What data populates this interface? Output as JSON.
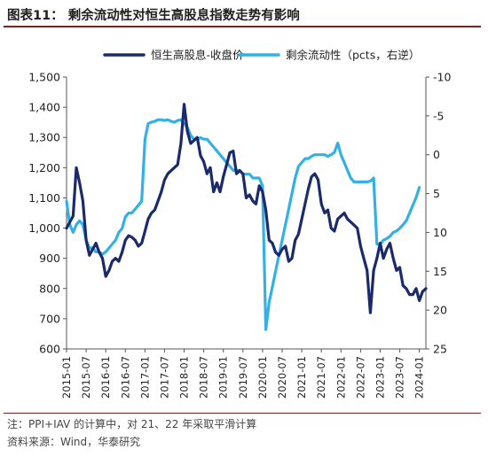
{
  "title": "图表11：  剩余流动性对恒生高股息指数走势有影响",
  "note": "注：PPI+IAV 的计算中，对 21、22 年采取平滑计算",
  "source": "资料来源：Wind，华泰研究",
  "colors": {
    "series1": "#1b2a6b",
    "series2": "#33b1e6",
    "rule": "#8a1c1c"
  },
  "chart_data": {
    "type": "line",
    "x_ticks": [
      "2015-01",
      "2015-07",
      "2016-01",
      "2016-07",
      "2017-01",
      "2017-07",
      "2018-01",
      "2018-07",
      "2019-01",
      "2019-07",
      "2020-01",
      "2020-07",
      "2021-01",
      "2021-07",
      "2022-01",
      "2022-07",
      "2023-01",
      "2023-07",
      "2024-01"
    ],
    "y_left": {
      "min": 600,
      "max": 1500,
      "ticks": [
        "600",
        "700",
        "800",
        "900",
        "1,000",
        "1,100",
        "1,200",
        "1,300",
        "1,400",
        "1,500"
      ]
    },
    "y_right": {
      "min": -10,
      "max": 25,
      "inverted": true,
      "ticks": [
        "-10",
        "-5",
        "0",
        "5",
        "10",
        "15",
        "20",
        "25"
      ]
    },
    "legend_position": "top",
    "series": [
      {
        "name": "恒生高股息-收盘价",
        "axis": "left",
        "points": [
          [
            "2015-01",
            1000
          ],
          [
            "2015-02",
            1020
          ],
          [
            "2015-03",
            1040
          ],
          [
            "2015-04",
            1200
          ],
          [
            "2015-05",
            1150
          ],
          [
            "2015-06",
            1090
          ],
          [
            "2015-07",
            960
          ],
          [
            "2015-08",
            910
          ],
          [
            "2015-09",
            930
          ],
          [
            "2015-10",
            950
          ],
          [
            "2015-11",
            920
          ],
          [
            "2015-12",
            900
          ],
          [
            "2016-01",
            840
          ],
          [
            "2016-02",
            860
          ],
          [
            "2016-03",
            890
          ],
          [
            "2016-04",
            900
          ],
          [
            "2016-05",
            890
          ],
          [
            "2016-06",
            920
          ],
          [
            "2016-07",
            960
          ],
          [
            "2016-08",
            975
          ],
          [
            "2016-09",
            970
          ],
          [
            "2016-10",
            960
          ],
          [
            "2016-11",
            940
          ],
          [
            "2016-12",
            950
          ],
          [
            "2017-01",
            990
          ],
          [
            "2017-02",
            1030
          ],
          [
            "2017-03",
            1050
          ],
          [
            "2017-04",
            1060
          ],
          [
            "2017-05",
            1090
          ],
          [
            "2017-06",
            1120
          ],
          [
            "2017-07",
            1160
          ],
          [
            "2017-08",
            1180
          ],
          [
            "2017-09",
            1190
          ],
          [
            "2017-10",
            1200
          ],
          [
            "2017-11",
            1210
          ],
          [
            "2017-12",
            1280
          ],
          [
            "2018-01",
            1410
          ],
          [
            "2018-02",
            1320
          ],
          [
            "2018-03",
            1280
          ],
          [
            "2018-04",
            1290
          ],
          [
            "2018-05",
            1300
          ],
          [
            "2018-06",
            1240
          ],
          [
            "2018-07",
            1220
          ],
          [
            "2018-08",
            1180
          ],
          [
            "2018-09",
            1200
          ],
          [
            "2018-10",
            1120
          ],
          [
            "2018-11",
            1150
          ],
          [
            "2018-12",
            1120
          ],
          [
            "2019-01",
            1170
          ],
          [
            "2019-02",
            1210
          ],
          [
            "2019-03",
            1250
          ],
          [
            "2019-04",
            1255
          ],
          [
            "2019-05",
            1180
          ],
          [
            "2019-06",
            1190
          ],
          [
            "2019-07",
            1180
          ],
          [
            "2019-08",
            1100
          ],
          [
            "2019-09",
            1110
          ],
          [
            "2019-10",
            1090
          ],
          [
            "2019-11",
            1080
          ],
          [
            "2019-12",
            1140
          ],
          [
            "2020-01",
            1120
          ],
          [
            "2020-02",
            1060
          ],
          [
            "2020-03",
            960
          ],
          [
            "2020-04",
            950
          ],
          [
            "2020-05",
            920
          ],
          [
            "2020-06",
            910
          ],
          [
            "2020-07",
            930
          ],
          [
            "2020-08",
            940
          ],
          [
            "2020-09",
            890
          ],
          [
            "2020-10",
            900
          ],
          [
            "2020-11",
            960
          ],
          [
            "2020-12",
            980
          ],
          [
            "2021-01",
            1030
          ],
          [
            "2021-02",
            1080
          ],
          [
            "2021-03",
            1130
          ],
          [
            "2021-04",
            1170
          ],
          [
            "2021-05",
            1180
          ],
          [
            "2021-06",
            1160
          ],
          [
            "2021-07",
            1080
          ],
          [
            "2021-08",
            1050
          ],
          [
            "2021-09",
            1060
          ],
          [
            "2021-10",
            1000
          ],
          [
            "2021-11",
            990
          ],
          [
            "2021-12",
            1030
          ],
          [
            "2022-01",
            1040
          ],
          [
            "2022-02",
            1050
          ],
          [
            "2022-03",
            1030
          ],
          [
            "2022-04",
            1020
          ],
          [
            "2022-05",
            1010
          ],
          [
            "2022-06",
            1000
          ],
          [
            "2022-07",
            940
          ],
          [
            "2022-08",
            900
          ],
          [
            "2022-09",
            860
          ],
          [
            "2022-10",
            720
          ],
          [
            "2022-11",
            860
          ],
          [
            "2022-12",
            900
          ],
          [
            "2023-01",
            950
          ],
          [
            "2023-02",
            900
          ],
          [
            "2023-03",
            930
          ],
          [
            "2023-04",
            950
          ],
          [
            "2023-05",
            900
          ],
          [
            "2023-06",
            860
          ],
          [
            "2023-07",
            870
          ],
          [
            "2023-08",
            810
          ],
          [
            "2023-09",
            800
          ],
          [
            "2023-10",
            780
          ],
          [
            "2023-11",
            780
          ],
          [
            "2023-12",
            800
          ],
          [
            "2024-01",
            760
          ],
          [
            "2024-02",
            790
          ],
          [
            "2024-03",
            800
          ]
        ]
      },
      {
        "name": "剩余流动性（pcts，右逆）",
        "axis": "right",
        "points": [
          [
            "2015-01",
            6
          ],
          [
            "2015-02",
            9
          ],
          [
            "2015-03",
            10
          ],
          [
            "2015-04",
            9
          ],
          [
            "2015-05",
            8.5
          ],
          [
            "2015-06",
            9
          ],
          [
            "2015-07",
            11
          ],
          [
            "2015-08",
            12
          ],
          [
            "2015-09",
            12
          ],
          [
            "2015-10",
            12.5
          ],
          [
            "2015-11",
            12.5
          ],
          [
            "2015-12",
            12.8
          ],
          [
            "2016-01",
            12.5
          ],
          [
            "2016-02",
            12
          ],
          [
            "2016-03",
            11.5
          ],
          [
            "2016-04",
            11
          ],
          [
            "2016-05",
            10
          ],
          [
            "2016-06",
            9.5
          ],
          [
            "2016-07",
            8
          ],
          [
            "2016-08",
            7.5
          ],
          [
            "2016-09",
            7.5
          ],
          [
            "2016-10",
            7
          ],
          [
            "2016-11",
            6.5
          ],
          [
            "2016-12",
            6
          ],
          [
            "2017-01",
            -2
          ],
          [
            "2017-02",
            -4
          ],
          [
            "2017-03",
            -4.2
          ],
          [
            "2017-04",
            -4.3
          ],
          [
            "2017-05",
            -4.5
          ],
          [
            "2017-06",
            -4.5
          ],
          [
            "2017-07",
            -4.4
          ],
          [
            "2017-08",
            -4.5
          ],
          [
            "2017-09",
            -4.3
          ],
          [
            "2017-10",
            -4.2
          ],
          [
            "2017-11",
            -4.4
          ],
          [
            "2017-12",
            -4.5
          ],
          [
            "2018-01",
            -4
          ],
          [
            "2018-02",
            -3.5
          ],
          [
            "2018-03",
            -2.5
          ],
          [
            "2018-04",
            -2
          ],
          [
            "2018-05",
            -2
          ],
          [
            "2018-06",
            -2.2
          ],
          [
            "2018-07",
            -2
          ],
          [
            "2018-08",
            -2
          ],
          [
            "2018-09",
            -1.5
          ],
          [
            "2018-10",
            -1
          ],
          [
            "2018-11",
            -0.5
          ],
          [
            "2018-12",
            0
          ],
          [
            "2019-01",
            0.5
          ],
          [
            "2019-02",
            1
          ],
          [
            "2019-03",
            1.5
          ],
          [
            "2019-04",
            2
          ],
          [
            "2019-05",
            2
          ],
          [
            "2019-06",
            2
          ],
          [
            "2019-07",
            2.5
          ],
          [
            "2019-08",
            2.5
          ],
          [
            "2019-09",
            2.5
          ],
          [
            "2019-10",
            3
          ],
          [
            "2019-11",
            3
          ],
          [
            "2019-12",
            3
          ],
          [
            "2020-01",
            4
          ],
          [
            "2020-02",
            22.5
          ],
          [
            "2020-03",
            19
          ],
          [
            "2020-04",
            17
          ],
          [
            "2020-05",
            15
          ],
          [
            "2020-06",
            13
          ],
          [
            "2020-07",
            11
          ],
          [
            "2020-08",
            9
          ],
          [
            "2020-09",
            7
          ],
          [
            "2020-10",
            5
          ],
          [
            "2020-11",
            3
          ],
          [
            "2020-12",
            1.5
          ],
          [
            "2021-01",
            1
          ],
          [
            "2021-02",
            0.5
          ],
          [
            "2021-03",
            0.5
          ],
          [
            "2021-04",
            0.2
          ],
          [
            "2021-05",
            0
          ],
          [
            "2021-06",
            0
          ],
          [
            "2021-07",
            0
          ],
          [
            "2021-08",
            0
          ],
          [
            "2021-09",
            0.2
          ],
          [
            "2021-10",
            0
          ],
          [
            "2021-11",
            -0.3
          ],
          [
            "2021-12",
            -1.5
          ],
          [
            "2022-01",
            0
          ],
          [
            "2022-02",
            1
          ],
          [
            "2022-03",
            2
          ],
          [
            "2022-04",
            3
          ],
          [
            "2022-05",
            3.5
          ],
          [
            "2022-06",
            3.5
          ],
          [
            "2022-07",
            3.5
          ],
          [
            "2022-08",
            3.5
          ],
          [
            "2022-09",
            3.5
          ],
          [
            "2022-10",
            3.4
          ],
          [
            "2022-11",
            3
          ],
          [
            "2022-12",
            11.5
          ],
          [
            "2023-01",
            11.5
          ],
          [
            "2023-02",
            11
          ],
          [
            "2023-03",
            10.8
          ],
          [
            "2023-04",
            10.5
          ],
          [
            "2023-05",
            10
          ],
          [
            "2023-06",
            9.8
          ],
          [
            "2023-07",
            9.5
          ],
          [
            "2023-08",
            9
          ],
          [
            "2023-09",
            8.5
          ],
          [
            "2023-10",
            7.5
          ],
          [
            "2023-11",
            6.5
          ],
          [
            "2023-12",
            5.5
          ],
          [
            "2024-01",
            4.2
          ]
        ]
      }
    ]
  }
}
